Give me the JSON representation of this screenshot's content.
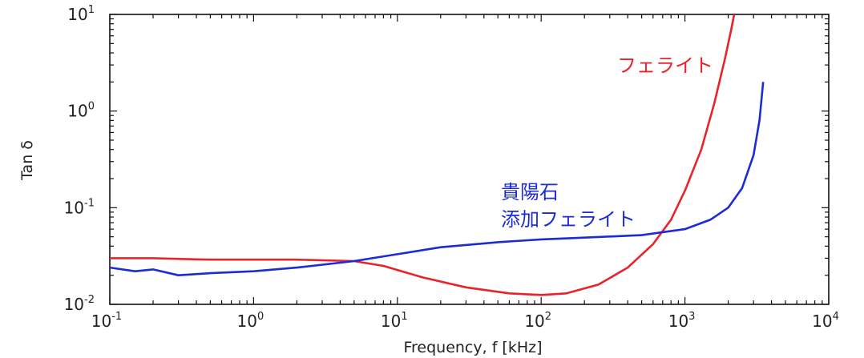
{
  "chart_data": {
    "type": "line",
    "xlabel": "Frequency, f [kHz]",
    "ylabel": "Tan δ",
    "xscale": "log",
    "yscale": "log",
    "xlim": [
      0.1,
      10000
    ],
    "ylim": [
      0.01,
      10
    ],
    "x_ticks": [
      {
        "base": "10",
        "exp": "-1"
      },
      {
        "base": "10",
        "exp": "0"
      },
      {
        "base": "10",
        "exp": "1"
      },
      {
        "base": "10",
        "exp": "2"
      },
      {
        "base": "10",
        "exp": "3"
      },
      {
        "base": "10",
        "exp": "4"
      }
    ],
    "y_ticks": [
      {
        "base": "10",
        "exp": "-2"
      },
      {
        "base": "10",
        "exp": "-1"
      },
      {
        "base": "10",
        "exp": "0"
      },
      {
        "base": "10",
        "exp": "1"
      }
    ],
    "grid": false,
    "series": [
      {
        "name": "フェライト",
        "color": "#e8232a",
        "x": [
          0.1,
          0.2,
          0.5,
          1,
          2,
          5,
          8,
          15,
          30,
          60,
          100,
          150,
          250,
          400,
          600,
          800,
          1000,
          1300,
          1600,
          1900,
          2100,
          2200
        ],
        "y": [
          0.03,
          0.03,
          0.029,
          0.029,
          0.029,
          0.028,
          0.025,
          0.019,
          0.015,
          0.013,
          0.0125,
          0.013,
          0.016,
          0.024,
          0.042,
          0.075,
          0.15,
          0.4,
          1.2,
          3.5,
          7,
          10
        ]
      },
      {
        "name": "貴陽石 添加フェライト",
        "color": "#1c2bd6",
        "x": [
          0.1,
          0.15,
          0.2,
          0.3,
          0.5,
          1,
          2,
          5,
          10,
          20,
          50,
          100,
          200,
          500,
          1000,
          1500,
          2000,
          2500,
          3000,
          3300,
          3500
        ],
        "y": [
          0.024,
          0.022,
          0.023,
          0.02,
          0.021,
          0.022,
          0.024,
          0.028,
          0.033,
          0.039,
          0.044,
          0.047,
          0.049,
          0.052,
          0.06,
          0.075,
          0.1,
          0.16,
          0.35,
          0.8,
          2.0
        ]
      }
    ],
    "annotations": [
      {
        "text": "フェライト",
        "color": "#e8232a"
      },
      {
        "text": "貴陽石",
        "color": "#1c2bd6"
      },
      {
        "text": "添加フェライト",
        "color": "#1c2bd6"
      }
    ]
  }
}
